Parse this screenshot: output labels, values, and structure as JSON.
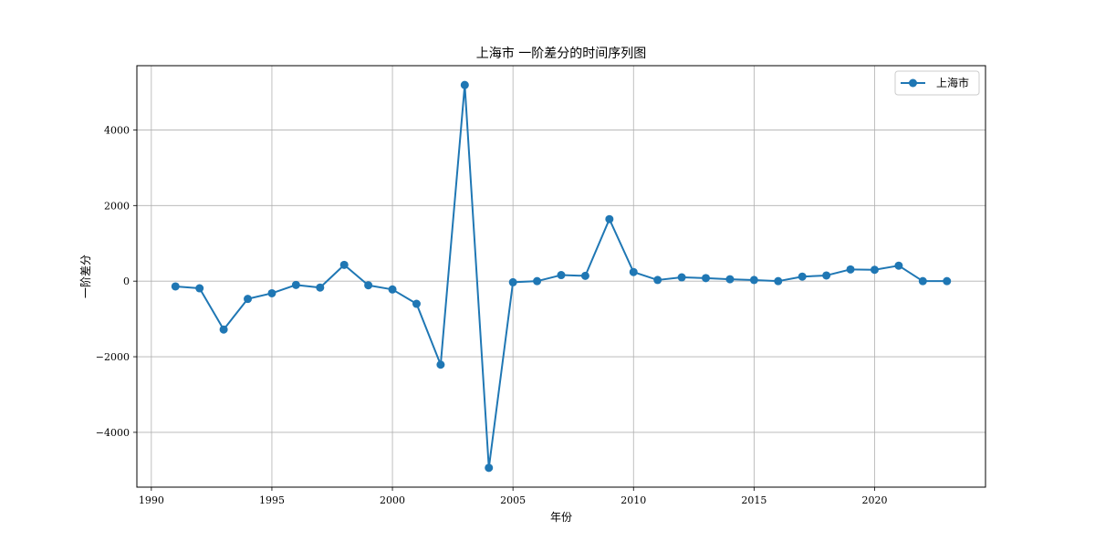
{
  "chart_data": {
    "type": "line",
    "title": "上海市 一阶差分的时间序列图",
    "xlabel": "年份",
    "ylabel": "一阶差分",
    "xlim": [
      1989.4,
      2024.6
    ],
    "ylim": [
      -5450,
      5700
    ],
    "xticks": [
      1990,
      1995,
      2000,
      2005,
      2010,
      2015,
      2020
    ],
    "yticks": [
      -4000,
      -2000,
      0,
      2000,
      4000
    ],
    "grid": true,
    "legend_position": "top-right",
    "series": [
      {
        "name": "上海市",
        "color": "#1f77b4",
        "marker": "circle",
        "x": [
          1991,
          1992,
          1993,
          1994,
          1995,
          1996,
          1997,
          1998,
          1999,
          2000,
          2001,
          2002,
          2003,
          2004,
          2005,
          2006,
          2007,
          2008,
          2009,
          2010,
          2011,
          2012,
          2013,
          2014,
          2015,
          2016,
          2017,
          2018,
          2019,
          2020,
          2021,
          2022,
          2023
        ],
        "y": [
          -140,
          -190,
          -1280,
          -470,
          -320,
          -100,
          -170,
          430,
          -110,
          -220,
          -600,
          -2210,
          5190,
          -4940,
          -30,
          0,
          160,
          140,
          1640,
          240,
          30,
          100,
          80,
          50,
          30,
          0,
          120,
          150,
          310,
          300,
          410,
          0,
          0
        ]
      }
    ]
  }
}
